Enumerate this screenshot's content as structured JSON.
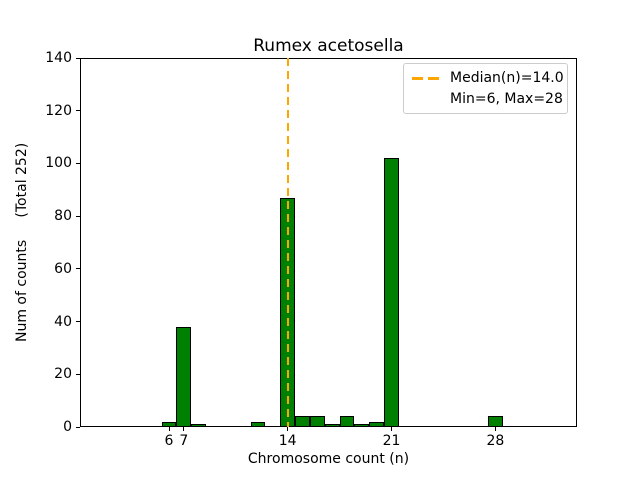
{
  "figure_title": "Rumex acetosella",
  "chart_data": {
    "type": "bar",
    "title": "Rumex acetosella",
    "xlabel": "Chromosome count (n)",
    "ylabel": "Num of counts     (Total 252)",
    "total_label": "(Total 252)",
    "total": 252,
    "categories": [
      6,
      7,
      8,
      12,
      14,
      15,
      16,
      17,
      18,
      19,
      20,
      21,
      28
    ],
    "values": [
      2,
      38,
      1,
      2,
      87,
      4,
      4,
      1,
      4,
      1,
      2,
      102,
      4
    ],
    "bar_width": 1,
    "bar_color": "#008000",
    "bar_edge_color": "#000000",
    "xlim": [
      0,
      33.5
    ],
    "ylim": [
      0,
      140
    ],
    "xticks": [
      6,
      7,
      14,
      21,
      28
    ],
    "yticks": [
      0,
      20,
      40,
      60,
      80,
      100,
      120,
      140
    ],
    "grid": false,
    "median_line": {
      "x": 14,
      "color": "#FFA500",
      "style": "dashed",
      "value_label": "14.0"
    },
    "legend": {
      "position": "upper right",
      "entries": [
        {
          "label": "Median(n)=14.0",
          "handle": "orange-dashed-line"
        },
        {
          "label": "Min=6, Max=28",
          "handle": "none"
        }
      ]
    },
    "min": 6,
    "max": 28,
    "median": 14.0
  }
}
